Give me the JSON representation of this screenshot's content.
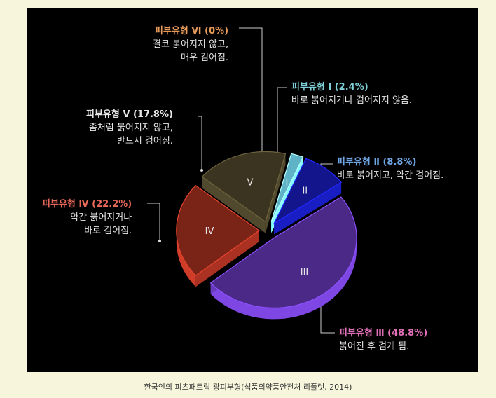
{
  "chart_data": {
    "type": "pie",
    "slices": [
      {
        "label": "I",
        "title": "피부유형 Ⅰ (2.4%)",
        "value": 2.4,
        "desc": [
          "바로 붉어지거나 검어지지 않음."
        ],
        "color": "#5fb3c6",
        "title_color": "#7fd0d8"
      },
      {
        "label": "II",
        "title": "피부유형 Ⅱ (8.8%)",
        "value": 8.8,
        "desc": [
          "바로 붉어지고, 약간 검어짐."
        ],
        "color": "#12158c",
        "title_color": "#6ea6e6"
      },
      {
        "label": "III",
        "title": "피부유형 Ⅲ (48.8%)",
        "value": 48.8,
        "desc": [
          "붉어진 후 검게 됨."
        ],
        "color": "#4a2a86",
        "title_color": "#e070b8"
      },
      {
        "label": "IV",
        "title": "피부유형 Ⅳ (22.2%)",
        "value": 22.2,
        "desc": [
          "약간 붉어지거나",
          "바로 검어짐."
        ],
        "color": "#7a2418",
        "title_color": "#e8685a"
      },
      {
        "label": "V",
        "title": "피부유형 Ⅴ (17.8%)",
        "value": 17.8,
        "desc": [
          "좀처럼 붉어지지 않고,",
          "반드시 검어짐."
        ],
        "color": "#3a3420",
        "title_color": "#e6e6e6"
      },
      {
        "label": "VI",
        "title": "피부유형 Ⅵ (0%)",
        "value": 0,
        "desc": [
          "결코 붉어지지 않고,",
          "매우 검어짐."
        ],
        "color": "#808080",
        "title_color": "#e89a5a"
      }
    ]
  },
  "caption": "한국인의 피츠패트릭 광피부형(식품의약품안전처 리플렛, 2014)"
}
